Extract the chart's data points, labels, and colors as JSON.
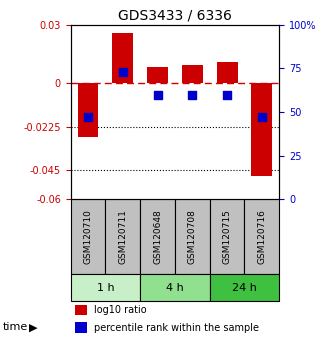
{
  "title": "GDS3433 / 6336",
  "samples": [
    "GSM120710",
    "GSM120711",
    "GSM120648",
    "GSM120708",
    "GSM120715",
    "GSM120716"
  ],
  "log10_ratio": [
    -0.028,
    0.026,
    0.008,
    0.009,
    0.011,
    -0.048
  ],
  "percentile_rank": [
    47,
    73,
    60,
    60,
    60,
    47
  ],
  "ylim_left": [
    -0.06,
    0.03
  ],
  "ylim_right": [
    0,
    100
  ],
  "yticks_left": [
    0.03,
    0,
    -0.0225,
    -0.045,
    -0.06
  ],
  "ytick_labels_left": [
    "0.03",
    "0",
    "-0.0225",
    "-0.045",
    "-0.06"
  ],
  "yticks_right": [
    100,
    75,
    50,
    25,
    0
  ],
  "ytick_labels_right": [
    "100%",
    "75",
    "50",
    "25",
    "0"
  ],
  "hlines": [
    0,
    -0.0225,
    -0.045
  ],
  "hline_styles": [
    "dash",
    "dot",
    "dot"
  ],
  "time_groups": [
    {
      "label": "1 h",
      "start": 0,
      "end": 2,
      "color": "#c8f0c8"
    },
    {
      "label": "4 h",
      "start": 2,
      "end": 4,
      "color": "#90e090"
    },
    {
      "label": "24 h",
      "start": 4,
      "end": 6,
      "color": "#40c040"
    }
  ],
  "bar_color": "#cc0000",
  "dot_color": "#0000cc",
  "sample_box_color": "#c0c0c0",
  "legend_bar_label": "log10 ratio",
  "legend_dot_label": "percentile rank within the sample",
  "xlabel_label": "time",
  "bar_width": 0.6,
  "dot_size": 40
}
